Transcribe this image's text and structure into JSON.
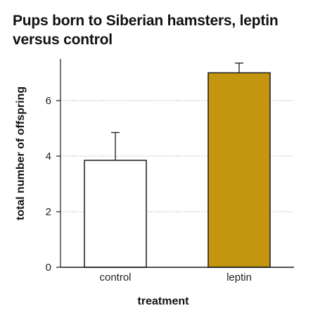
{
  "chart_data": {
    "type": "bar",
    "title": "Pups born to Siberian hamsters, leptin versus control",
    "xlabel": "treatment",
    "ylabel": "total number of offspring",
    "categories": [
      "control",
      "leptin"
    ],
    "values": [
      3.85,
      7.0
    ],
    "error_bars": [
      1.0,
      0.35
    ],
    "bar_colors": [
      "#ffffff",
      "#c4960f"
    ],
    "bar_edge_color": "#1a1a1a",
    "ylim": [
      0,
      7.5
    ],
    "yticks": [
      0,
      2,
      4,
      6
    ],
    "ytick_labels": [
      "0",
      "2",
      "4",
      "6"
    ],
    "grid": "horizontal dotted"
  }
}
